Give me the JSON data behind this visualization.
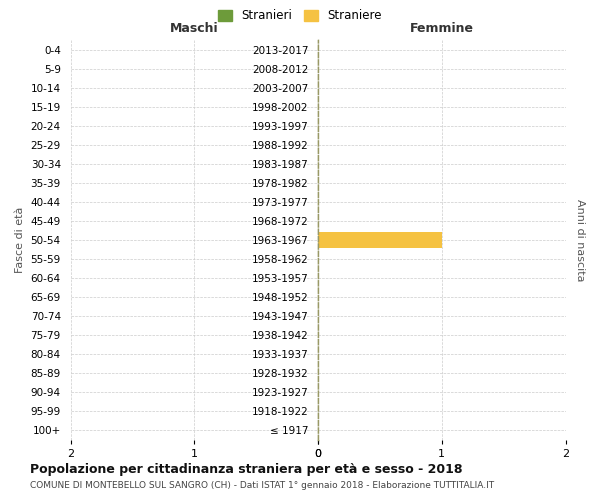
{
  "age_groups": [
    "100+",
    "95-99",
    "90-94",
    "85-89",
    "80-84",
    "75-79",
    "70-74",
    "65-69",
    "60-64",
    "55-59",
    "50-54",
    "45-49",
    "40-44",
    "35-39",
    "30-34",
    "25-29",
    "20-24",
    "15-19",
    "10-14",
    "5-9",
    "0-4"
  ],
  "birth_years": [
    "≤ 1917",
    "1918-1922",
    "1923-1927",
    "1928-1932",
    "1933-1937",
    "1938-1942",
    "1943-1947",
    "1948-1952",
    "1953-1957",
    "1958-1962",
    "1963-1967",
    "1968-1972",
    "1973-1977",
    "1978-1982",
    "1983-1987",
    "1988-1992",
    "1993-1997",
    "1998-2002",
    "2003-2007",
    "2008-2012",
    "2013-2017"
  ],
  "males": [
    0,
    0,
    0,
    0,
    0,
    0,
    0,
    0,
    0,
    0,
    0,
    0,
    0,
    0,
    0,
    0,
    0,
    0,
    0,
    0,
    0
  ],
  "females": [
    0,
    0,
    0,
    0,
    0,
    0,
    0,
    0,
    0,
    0,
    1,
    0,
    0,
    0,
    0,
    0,
    0,
    0,
    0,
    0,
    0
  ],
  "male_color": "#6d9b3a",
  "female_color": "#f5c242",
  "xlim": 2,
  "title": "Popolazione per cittadinanza straniera per età e sesso - 2018",
  "subtitle": "COMUNE DI MONTEBELLO SUL SANGRO (CH) - Dati ISTAT 1° gennaio 2018 - Elaborazione TUTTITALIA.IT",
  "left_label": "Maschi",
  "right_label": "Femmine",
  "left_axis_label": "Fasce di età",
  "right_axis_label": "Anni di nascita",
  "legend_male": "Stranieri",
  "legend_female": "Straniere",
  "bg_color": "#ffffff",
  "grid_color": "#cccccc",
  "bar_height": 0.8,
  "center_line_color": "#999966"
}
